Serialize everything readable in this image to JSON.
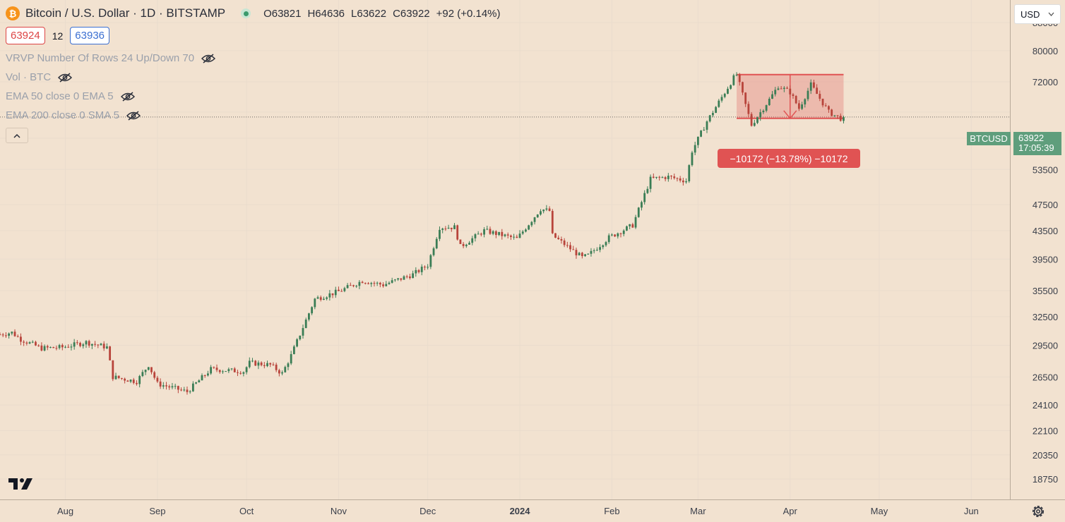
{
  "header": {
    "logo_glyph": "₿",
    "symbol_title": "Bitcoin / U.S. Dollar · 1D · BITSTAMP",
    "ohlc": {
      "open": "O63821",
      "high": "H64636",
      "low": "L63622",
      "close": "C63922",
      "change": "+92 (+0.14%)"
    },
    "bid": "63924",
    "spread": "12",
    "ask": "63936"
  },
  "indicators": [
    {
      "label": "VRVP Number Of Rows 24 Up/Down 70",
      "icon": "eye-hidden-icon"
    },
    {
      "label": "Vol · BTC",
      "icon": "eye-hidden-icon"
    },
    {
      "label": "EMA 50 close 0 EMA 5",
      "icon": "eye-hidden-icon"
    },
    {
      "label": "EMA 200 close 0 SMA 5",
      "icon": "eye-hidden-icon"
    }
  ],
  "currency_selector": {
    "value": "USD"
  },
  "last_price": {
    "symbol": "BTCUSD",
    "value": "63922",
    "countdown": "17:05:39"
  },
  "measure": {
    "text": "−10172 (−13.78%) −10172"
  },
  "colors": {
    "background": "#f2e2d0",
    "up": "#3a7d55",
    "down": "#b8443b",
    "measure": "#e05353",
    "last_price": "#5f9e7c"
  },
  "chart_data": {
    "type": "candlestick",
    "y_scale": "log",
    "ylim": [
      17500,
      95000
    ],
    "y_ticks": [
      88000,
      80000,
      72000,
      65000,
      59500,
      53500,
      47500,
      43500,
      39500,
      35500,
      32500,
      29500,
      26500,
      24100,
      22100,
      20350,
      18750
    ],
    "y_tick_labels": [
      "88000",
      "80000",
      "72000",
      "",
      "59500",
      "53500",
      "47500",
      "43500",
      "39500",
      "35500",
      "32500",
      "29500",
      "26500",
      "24100",
      "22100",
      "20350",
      "18750"
    ],
    "x_tick_labels": [
      "Aug",
      "Sep",
      "Oct",
      "Nov",
      "Dec",
      "2024",
      "Feb",
      "Mar",
      "Apr",
      "May",
      "Jun"
    ],
    "x_ticks": [
      "2023-08-01",
      "2023-09-01",
      "2023-10-01",
      "2023-11-01",
      "2023-12-01",
      "2024-01-01",
      "2024-02-01",
      "2024-03-01",
      "2024-04-01",
      "2024-05-01",
      "2024-06-01"
    ],
    "xlim": [
      "2023-07-10",
      "2024-06-14"
    ],
    "anchors": [
      {
        "date": "2023-07-10",
        "value": 30600
      },
      {
        "date": "2023-07-14",
        "value": 30800
      },
      {
        "date": "2023-07-17",
        "value": 30100
      },
      {
        "date": "2023-07-24",
        "value": 29200
      },
      {
        "date": "2023-07-31",
        "value": 29300
      },
      {
        "date": "2023-08-08",
        "value": 29800
      },
      {
        "date": "2023-08-15",
        "value": 29300
      },
      {
        "date": "2023-08-17",
        "value": 26500
      },
      {
        "date": "2023-08-25",
        "value": 26100
      },
      {
        "date": "2023-08-29",
        "value": 27600
      },
      {
        "date": "2023-09-01",
        "value": 25900
      },
      {
        "date": "2023-09-11",
        "value": 25200
      },
      {
        "date": "2023-09-19",
        "value": 27200
      },
      {
        "date": "2023-09-30",
        "value": 27000
      },
      {
        "date": "2023-10-02",
        "value": 27800
      },
      {
        "date": "2023-10-09",
        "value": 27600
      },
      {
        "date": "2023-10-13",
        "value": 26800
      },
      {
        "date": "2023-10-16",
        "value": 28500
      },
      {
        "date": "2023-10-24",
        "value": 34500
      },
      {
        "date": "2023-11-01",
        "value": 35400
      },
      {
        "date": "2023-11-09",
        "value": 36700
      },
      {
        "date": "2023-11-16",
        "value": 36200
      },
      {
        "date": "2023-11-26",
        "value": 37500
      },
      {
        "date": "2023-12-01",
        "value": 38700
      },
      {
        "date": "2023-12-05",
        "value": 44000
      },
      {
        "date": "2023-12-10",
        "value": 44000
      },
      {
        "date": "2023-12-12",
        "value": 41200
      },
      {
        "date": "2023-12-20",
        "value": 43500
      },
      {
        "date": "2023-12-31",
        "value": 42300
      },
      {
        "date": "2024-01-08",
        "value": 46800
      },
      {
        "date": "2024-01-11",
        "value": 46500
      },
      {
        "date": "2024-01-12",
        "value": 42800
      },
      {
        "date": "2024-01-22",
        "value": 39700
      },
      {
        "date": "2024-01-24",
        "value": 40000
      },
      {
        "date": "2024-01-31",
        "value": 42500
      },
      {
        "date": "2024-02-08",
        "value": 44300
      },
      {
        "date": "2024-02-14",
        "value": 51800
      },
      {
        "date": "2024-02-20",
        "value": 52200
      },
      {
        "date": "2024-02-26",
        "value": 51500
      },
      {
        "date": "2024-02-28",
        "value": 57000
      },
      {
        "date": "2024-03-04",
        "value": 63000
      },
      {
        "date": "2024-03-05",
        "value": 64000
      },
      {
        "date": "2024-03-13",
        "value": 73000
      },
      {
        "date": "2024-03-14",
        "value": 73800
      },
      {
        "date": "2024-03-19",
        "value": 62200
      },
      {
        "date": "2024-03-25",
        "value": 67800
      },
      {
        "date": "2024-03-28",
        "value": 71000
      },
      {
        "date": "2024-04-01",
        "value": 69500
      },
      {
        "date": "2024-04-04",
        "value": 65800
      },
      {
        "date": "2024-04-08",
        "value": 71300
      },
      {
        "date": "2024-04-12",
        "value": 67000
      },
      {
        "date": "2024-04-14",
        "value": 65000
      },
      {
        "date": "2024-04-18",
        "value": 63600
      },
      {
        "date": "2024-04-19",
        "value": 63922
      }
    ],
    "last_price": 63922,
    "measure_range": {
      "from_date": "2024-03-14",
      "to_date": "2024-04-19",
      "from_price": 73794,
      "to_price": 63622,
      "change": -10172,
      "change_pct": -13.78
    }
  }
}
